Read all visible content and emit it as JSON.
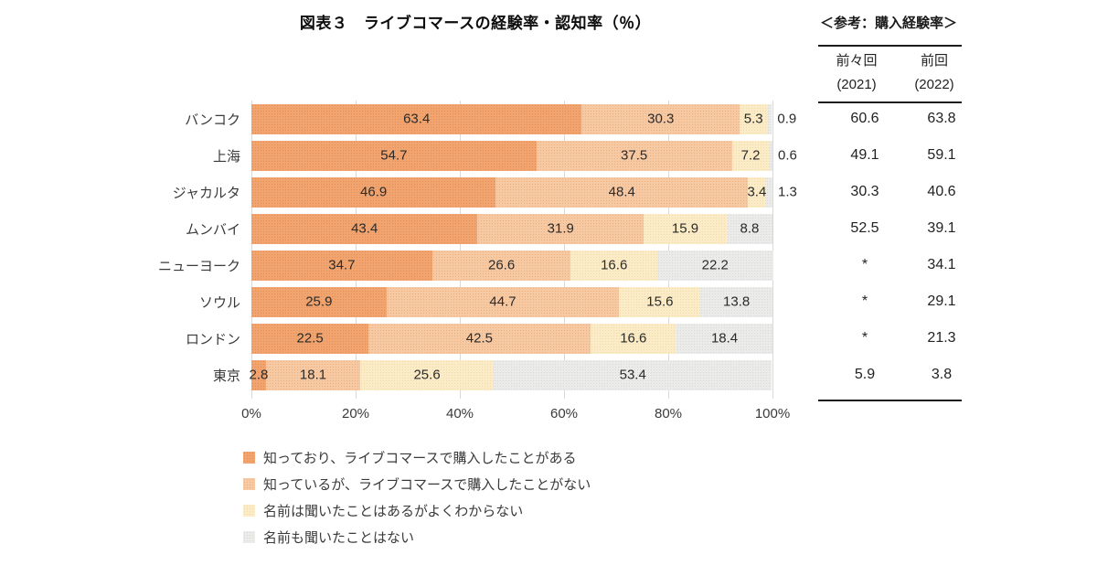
{
  "header": {
    "title": "図表３　ライブコマースの経験率・認知率（％）",
    "reference_caption": "＜参考：購入経験率＞"
  },
  "reference_table": {
    "columns": [
      {
        "line1": "前々回",
        "line2": "(2021)"
      },
      {
        "line1": "前回",
        "line2": "(2022)"
      }
    ]
  },
  "chart_data": {
    "type": "bar",
    "variant": "horizontal-stacked",
    "unit": "%",
    "title": "図表３　ライブコマースの経験率・認知率（％）",
    "xlim": [
      0,
      100
    ],
    "x_ticks": [
      "0%",
      "20%",
      "40%",
      "60%",
      "80%",
      "100%"
    ],
    "grid": true,
    "legend_position": "bottom-left",
    "series_labels": [
      "知っており、ライブコマースで購入したことがある",
      "知っているが、ライブコマースで購入したことがない",
      "名前は聞いたことはあるがよくわからない",
      "名前も聞いたことはない"
    ],
    "series_colors": [
      "#F1A46F",
      "#F7C9A3",
      "#FBECC7",
      "#EBEBEA"
    ],
    "series_pattern_dot_colors": [
      "#E2904F",
      "#ECB183",
      "#EFDBA6",
      "#D8D8D6"
    ],
    "categories": [
      "バンコク",
      "上海",
      "ジャカルタ",
      "ムンバイ",
      "ニューヨーク",
      "ソウル",
      "ロンドン",
      "東京"
    ],
    "rows": [
      {
        "city": "バンコク",
        "values": [
          63.4,
          30.3,
          5.3,
          0.9
        ],
        "end_label_outside": true,
        "ref_2021": "60.6",
        "ref_2022": "63.8"
      },
      {
        "city": "上海",
        "values": [
          54.7,
          37.5,
          7.2,
          0.6
        ],
        "end_label_outside": true,
        "ref_2021": "49.1",
        "ref_2022": "59.1"
      },
      {
        "city": "ジャカルタ",
        "values": [
          46.9,
          48.4,
          3.4,
          1.3
        ],
        "end_label_outside": true,
        "ref_2021": "30.3",
        "ref_2022": "40.6"
      },
      {
        "city": "ムンバイ",
        "values": [
          43.4,
          31.9,
          15.9,
          8.8
        ],
        "end_label_outside": false,
        "ref_2021": "52.5",
        "ref_2022": "39.1"
      },
      {
        "city": "ニューヨーク",
        "values": [
          34.7,
          26.6,
          16.6,
          22.2
        ],
        "end_label_outside": false,
        "ref_2021": "*",
        "ref_2022": "34.1"
      },
      {
        "city": "ソウル",
        "values": [
          25.9,
          44.7,
          15.6,
          13.8
        ],
        "end_label_outside": false,
        "ref_2021": "*",
        "ref_2022": "29.1"
      },
      {
        "city": "ロンドン",
        "values": [
          22.5,
          42.5,
          16.6,
          18.4
        ],
        "end_label_outside": false,
        "ref_2021": "*",
        "ref_2022": "21.3"
      },
      {
        "city": "東京",
        "values": [
          2.8,
          18.1,
          25.6,
          53.4
        ],
        "end_label_outside": false,
        "ref_2021": "5.9",
        "ref_2022": "3.8"
      }
    ]
  },
  "legend": {
    "items": [
      {
        "label": "知っており、ライブコマースで購入したことがある",
        "color": "#F1A46F",
        "dot": "#E2904F"
      },
      {
        "label": "知っているが、ライブコマースで購入したことがない",
        "color": "#F7C9A3",
        "dot": "#ECB183"
      },
      {
        "label": "名前は聞いたことはあるがよくわからない",
        "color": "#FBECC7",
        "dot": "#EFDBA6"
      },
      {
        "label": "名前も聞いたことはない",
        "color": "#EBEBEA",
        "dot": "#D8D8D6"
      }
    ]
  }
}
